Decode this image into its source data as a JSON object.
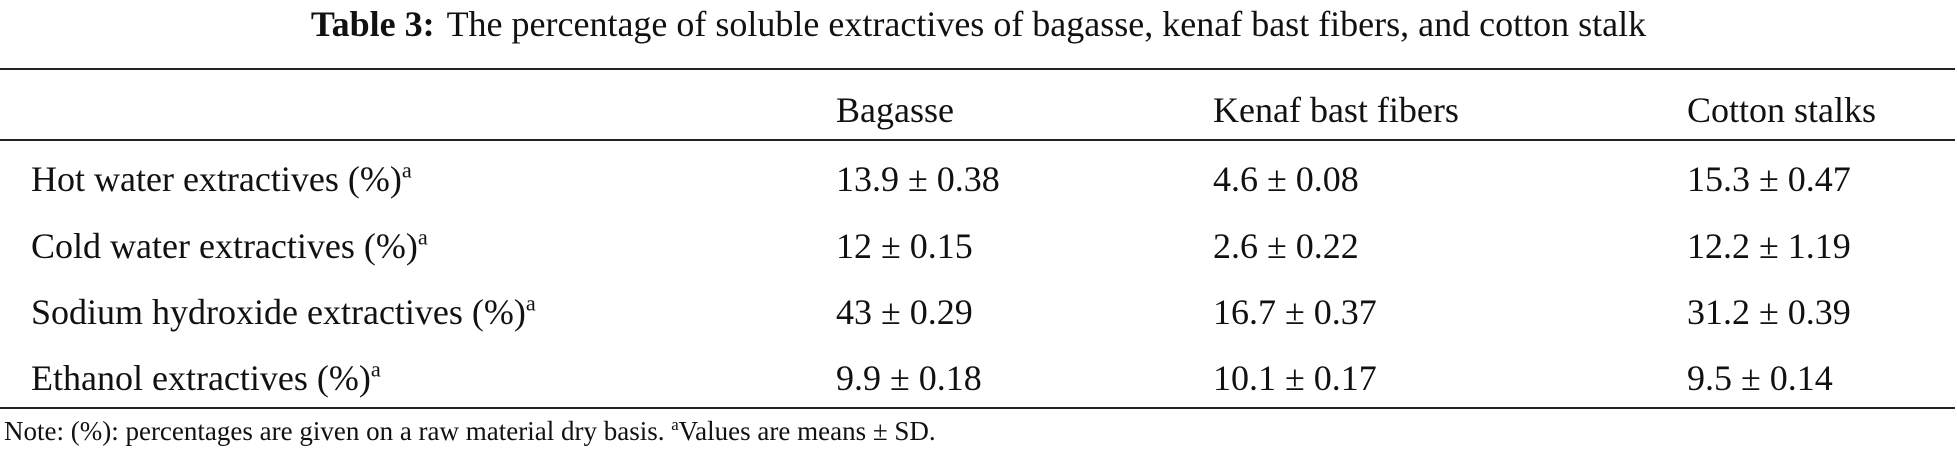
{
  "caption": {
    "label": "Table 3:",
    "text": "The percentage of soluble extractives of bagasse, kenaf bast fibers, and cotton stalk"
  },
  "table": {
    "header": [
      "Bagasse",
      "Kenaf bast fibers",
      "Cotton stalks"
    ],
    "rows": [
      {
        "label": "Hot water extractives (%)",
        "sup": "a",
        "cells": [
          "13.9 ± 0.38",
          "4.6 ± 0.08",
          "15.3 ± 0.47"
        ]
      },
      {
        "label": "Cold water extractives (%)",
        "sup": "a",
        "cells": [
          "12 ± 0.15",
          "2.6 ± 0.22",
          "12.2 ± 1.19"
        ]
      },
      {
        "label": "Sodium hydroxide extractives (%)",
        "sup": "a",
        "cells": [
          "43 ± 0.29",
          "16.7 ± 0.37",
          "31.2 ± 0.39"
        ]
      },
      {
        "label": "Ethanol extractives (%)",
        "sup": "a",
        "cells": [
          "9.9 ± 0.18",
          "10.1 ± 0.17",
          "9.5 ± 0.14"
        ]
      }
    ]
  },
  "note": {
    "text": "Note: (%): percentages are given on a raw material dry basis.",
    "sup": "a",
    "text2": "Values are means ± SD."
  }
}
